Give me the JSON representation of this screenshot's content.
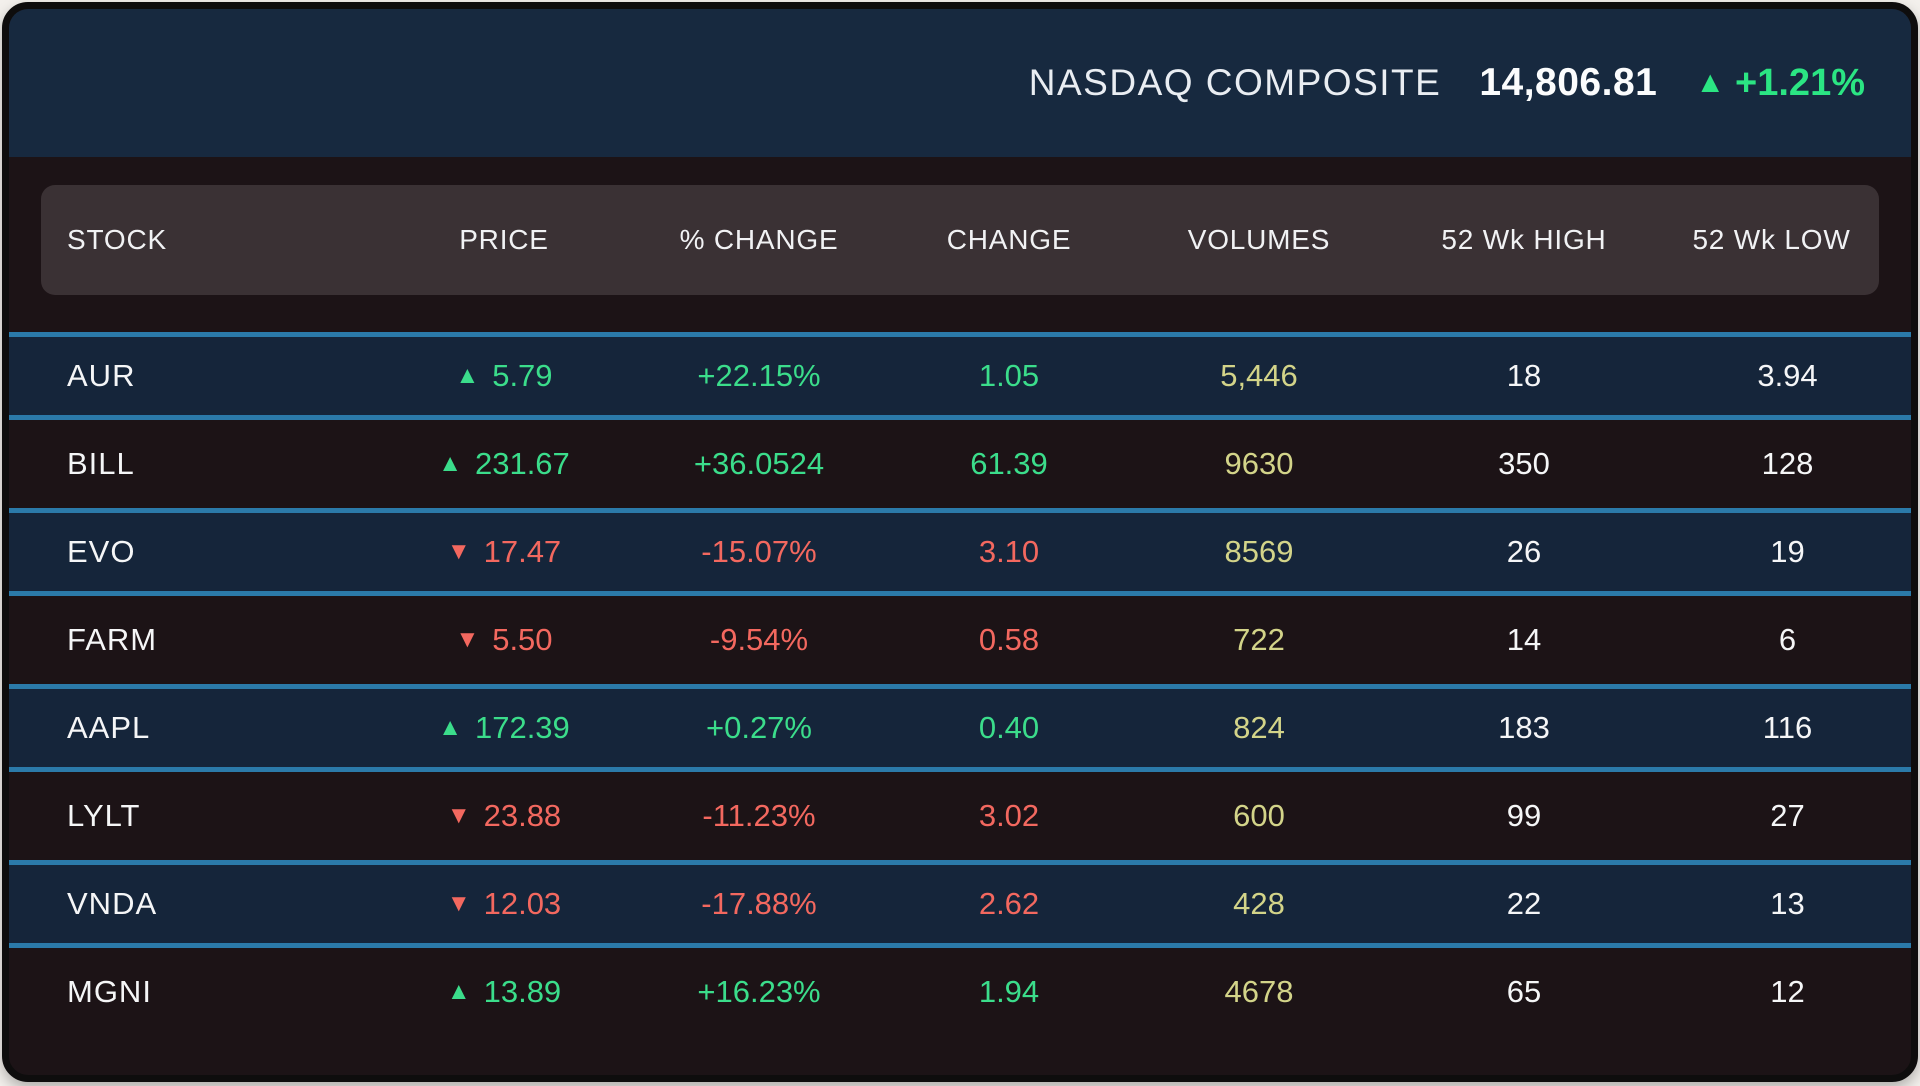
{
  "index_bar": {
    "name": "NASDAQ COMPOSITE",
    "value": "14,806.81",
    "change_percent": "+1.21%",
    "direction": "up"
  },
  "table": {
    "columns": [
      "STOCK",
      "PRICE",
      "% CHANGE",
      "CHANGE",
      "VOLUMES",
      "52 Wk HIGH",
      "52 Wk LOW"
    ],
    "rows": [
      {
        "stock": "AUR",
        "price": "5.79",
        "percent_change": "+22.15%",
        "change": "1.05",
        "volume": "5,446",
        "high52": "18",
        "low52": "3.94",
        "direction": "up"
      },
      {
        "stock": "BILL",
        "price": "231.67",
        "percent_change": "+36.0524",
        "change": "61.39",
        "volume": "9630",
        "high52": "350",
        "low52": "128",
        "direction": "up"
      },
      {
        "stock": "EVO",
        "price": "17.47",
        "percent_change": "-15.07%",
        "change": "3.10",
        "volume": "8569",
        "high52": "26",
        "low52": "19",
        "direction": "down"
      },
      {
        "stock": "FARM",
        "price": "5.50",
        "percent_change": "-9.54%",
        "change": "0.58",
        "volume": "722",
        "high52": "14",
        "low52": "6",
        "direction": "down"
      },
      {
        "stock": "AAPL",
        "price": "172.39",
        "percent_change": "+0.27%",
        "change": "0.40",
        "volume": "824",
        "high52": "183",
        "low52": "116",
        "direction": "up"
      },
      {
        "stock": "LYLT",
        "price": "23.88",
        "percent_change": "-11.23%",
        "change": "3.02",
        "volume": "600",
        "high52": "99",
        "low52": "27",
        "direction": "down"
      },
      {
        "stock": "VNDA",
        "price": "12.03",
        "percent_change": "-17.88%",
        "change": "2.62",
        "volume": "428",
        "high52": "22",
        "low52": "13",
        "direction": "down"
      },
      {
        "stock": "MGNI",
        "price": "13.89",
        "percent_change": "+16.23%",
        "change": "1.94",
        "volume": "4678",
        "high52": "65",
        "low52": "12",
        "direction": "up"
      }
    ]
  },
  "icons": {
    "up": "▲",
    "down": "▼"
  },
  "colors": {
    "page_bg": "#f3f0ec",
    "frame": "#0e0d0d",
    "bg": "#1c1316",
    "navy_header": "#17293f",
    "navy_row": "#15253a",
    "blue_border": "#2b7aa9",
    "header_box": "#3a3134",
    "green": "#3bdd8b",
    "green_bright": "#2be583",
    "red": "#f3685f",
    "khaki": "#d3d489",
    "text": "#f5f6f7"
  }
}
